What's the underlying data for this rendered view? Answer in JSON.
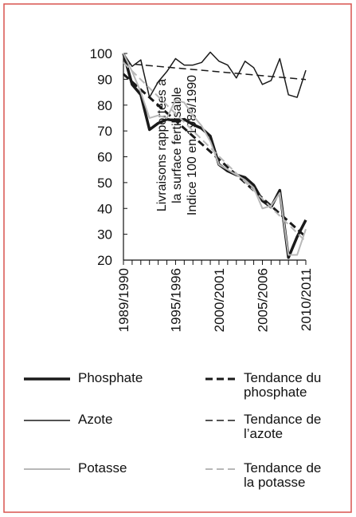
{
  "chart_data": {
    "type": "line",
    "y_label": [
      "Livraisons rapportées à",
      "la surface fertilisable",
      "Indice 100 en 1989/1990"
    ],
    "categories": [
      "1989/1990",
      null,
      null,
      null,
      null,
      null,
      "1995/1996",
      null,
      null,
      null,
      null,
      "2000/2001",
      null,
      null,
      null,
      null,
      "2005/2006",
      null,
      null,
      null,
      null,
      "2010/2011"
    ],
    "ylim": [
      20,
      100
    ],
    "yticks": [
      20,
      30,
      40,
      50,
      60,
      70,
      80,
      90,
      100
    ],
    "series": [
      {
        "name": "Phosphate",
        "color": "#1a1a1a",
        "linewidth": 3.5,
        "linestyle": "solid",
        "values": [
          100,
          88,
          84,
          70.5,
          73,
          74.5,
          74,
          74.5,
          72.5,
          71,
          68,
          57,
          54.5,
          53,
          52,
          49,
          43,
          40.5,
          47,
          21,
          29,
          35.5
        ]
      },
      {
        "name": "Tendance du phosphate",
        "color": "#1a1a1a",
        "linewidth": 3,
        "linestyle": "dashed",
        "values": [
          92,
          89,
          86,
          83,
          80,
          77,
          74,
          71,
          68,
          65,
          62,
          59,
          56,
          53,
          50,
          47,
          44,
          41,
          38,
          35,
          32,
          29
        ]
      },
      {
        "name": "Azote",
        "color": "#1a1a1a",
        "linewidth": 1.5,
        "linestyle": "solid",
        "values": [
          100,
          95,
          97.5,
          83,
          89,
          93,
          98,
          95.5,
          95.5,
          96.5,
          100.5,
          97,
          95.5,
          90.5,
          97,
          94.5,
          88,
          89.5,
          98,
          84,
          83,
          93.5
        ]
      },
      {
        "name": "Tendance de l’azote",
        "color": "#1a1a1a",
        "linewidth": 1.5,
        "linestyle": "dashed",
        "values": [
          96.2,
          95.9,
          95.6,
          95.3,
          95,
          94.7,
          94.4,
          94.1,
          93.8,
          93.5,
          93.2,
          92.9,
          92.6,
          92.3,
          92,
          91.7,
          91.4,
          91.1,
          90.8,
          90.5,
          90.2,
          89.9
        ]
      },
      {
        "name": "Potasse",
        "color": "#b8b8b8",
        "linewidth": 2,
        "linestyle": "solid",
        "values": [
          100,
          93,
          85,
          75,
          76,
          75,
          82,
          81,
          76,
          72,
          66,
          57,
          55,
          53,
          51,
          48,
          40,
          41,
          46,
          22,
          22,
          32
        ]
      },
      {
        "name": "Tendance de la potasse",
        "color": "#b8b8b8",
        "linewidth": 2,
        "linestyle": "dashed",
        "values": [
          96.5,
          93.2,
          89.9,
          86.6,
          83.3,
          80,
          76.7,
          73.4,
          70.1,
          66.8,
          63.5,
          60.2,
          56.9,
          53.6,
          50.3,
          47,
          43.7,
          40.4,
          37.1,
          33.8,
          30.5,
          27.2
        ]
      }
    ]
  }
}
